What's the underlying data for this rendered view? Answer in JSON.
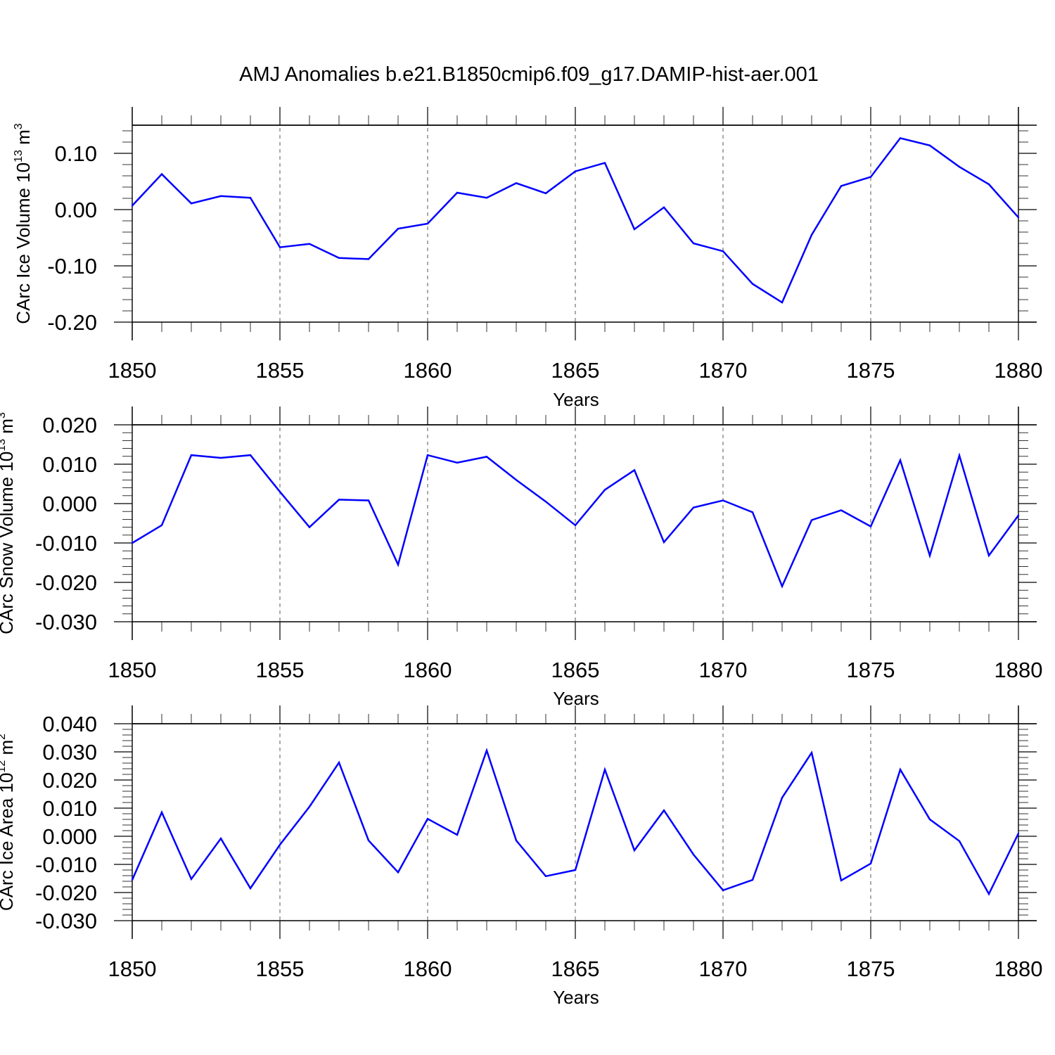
{
  "figure": {
    "title": "AMJ Anomalies b.e21.B1850cmip6.f09_g17.DAMIP-hist-aer.001"
  },
  "colors": {
    "line": "#0000ff",
    "grid": "#555555",
    "axis": "#000000"
  },
  "chart_data": [
    {
      "type": "line",
      "ylabel": {
        "text": "CArc Ice Volume 10",
        "sup": "13",
        "unit": " m",
        "unit_sup": "3"
      },
      "xlabel": "Years",
      "xlim": [
        1850,
        1880
      ],
      "ylim": [
        -0.2,
        0.15
      ],
      "xticks": [
        1850,
        1855,
        1860,
        1865,
        1870,
        1875,
        1880
      ],
      "xtick_labels": [
        "1850",
        "1855",
        "1860",
        "1865",
        "1870",
        "1875",
        "1880"
      ],
      "yticks": [
        -0.2,
        -0.1,
        0.0,
        0.1
      ],
      "ytick_labels": [
        "-0.20",
        "-0.10",
        "0.00",
        "0.10"
      ],
      "grid": "vertical dashed at major x ticks",
      "x": [
        1850,
        1851,
        1852,
        1853,
        1854,
        1855,
        1856,
        1857,
        1858,
        1859,
        1860,
        1861,
        1862,
        1863,
        1864,
        1865,
        1866,
        1867,
        1868,
        1869,
        1870,
        1871,
        1872,
        1873,
        1874,
        1875,
        1876,
        1877,
        1878,
        1879,
        1880
      ],
      "series": [
        {
          "values": [
            0.007,
            0.063,
            0.011,
            0.024,
            0.021,
            -0.067,
            -0.061,
            -0.086,
            -0.088,
            -0.034,
            -0.025,
            0.03,
            0.021,
            0.047,
            0.029,
            0.068,
            0.083,
            -0.035,
            0.004,
            -0.06,
            -0.074,
            -0.132,
            -0.165,
            -0.045,
            0.042,
            0.058,
            0.127,
            0.114,
            0.076,
            0.045,
            -0.014
          ]
        }
      ]
    },
    {
      "type": "line",
      "ylabel": {
        "text": "CArc Snow Volume 10",
        "sup": "13",
        "unit": " m",
        "unit_sup": "3"
      },
      "xlabel": "Years",
      "xlim": [
        1850,
        1880
      ],
      "ylim": [
        -0.03,
        0.02
      ],
      "xticks": [
        1850,
        1855,
        1860,
        1865,
        1870,
        1875,
        1880
      ],
      "xtick_labels": [
        "1850",
        "1855",
        "1860",
        "1865",
        "1870",
        "1875",
        "1880"
      ],
      "yticks": [
        -0.03,
        -0.02,
        -0.01,
        0.0,
        0.01,
        0.02
      ],
      "ytick_labels": [
        "-0.030",
        "-0.020",
        "-0.010",
        "0.000",
        "0.010",
        "0.020"
      ],
      "grid": "vertical dashed at major x ticks",
      "x": [
        1850,
        1851,
        1852,
        1853,
        1854,
        1855,
        1856,
        1857,
        1858,
        1859,
        1860,
        1861,
        1862,
        1863,
        1864,
        1865,
        1866,
        1867,
        1868,
        1869,
        1870,
        1871,
        1872,
        1873,
        1874,
        1875,
        1876,
        1877,
        1878,
        1879,
        1880
      ],
      "series": [
        {
          "values": [
            -0.01,
            -0.0055,
            0.0123,
            0.0116,
            0.0123,
            0.003,
            -0.006,
            0.001,
            0.0008,
            -0.0155,
            0.0123,
            0.0104,
            0.0119,
            0.006,
            0.0005,
            -0.0055,
            0.0035,
            0.0085,
            -0.0098,
            -0.001,
            0.0008,
            -0.0022,
            -0.021,
            -0.0042,
            -0.0017,
            -0.0058,
            0.011,
            -0.0132,
            0.0122,
            -0.0132,
            -0.003
          ]
        }
      ]
    },
    {
      "type": "line",
      "ylabel": {
        "text": "CArc Ice Area 10",
        "sup": "12",
        "unit": " m",
        "unit_sup": "2"
      },
      "xlabel": "Years",
      "xlim": [
        1850,
        1880
      ],
      "ylim": [
        -0.03,
        0.04
      ],
      "xticks": [
        1850,
        1855,
        1860,
        1865,
        1870,
        1875,
        1880
      ],
      "xtick_labels": [
        "1850",
        "1855",
        "1860",
        "1865",
        "1870",
        "1875",
        "1880"
      ],
      "yticks": [
        -0.03,
        -0.02,
        -0.01,
        0.0,
        0.01,
        0.02,
        0.03,
        0.04
      ],
      "ytick_labels": [
        "-0.030",
        "-0.020",
        "-0.010",
        "0.000",
        "0.010",
        "0.020",
        "0.030",
        "0.040"
      ],
      "grid": "vertical dashed at major x ticks",
      "x": [
        1850,
        1851,
        1852,
        1853,
        1854,
        1855,
        1856,
        1857,
        1858,
        1859,
        1860,
        1861,
        1862,
        1863,
        1864,
        1865,
        1866,
        1867,
        1868,
        1869,
        1870,
        1871,
        1872,
        1873,
        1874,
        1875,
        1876,
        1877,
        1878,
        1879,
        1880
      ],
      "series": [
        {
          "values": [
            -0.0155,
            0.0085,
            -0.0152,
            -0.0008,
            -0.0185,
            -0.003,
            0.0105,
            0.0262,
            -0.0015,
            -0.0128,
            0.0062,
            0.0005,
            0.0305,
            -0.0015,
            -0.0142,
            -0.012,
            0.0237,
            -0.005,
            0.0092,
            -0.0065,
            -0.0192,
            -0.0155,
            0.0137,
            0.0297,
            -0.0157,
            -0.0097,
            0.0237,
            0.006,
            -0.0017,
            -0.0205,
            0.001
          ]
        }
      ]
    }
  ]
}
